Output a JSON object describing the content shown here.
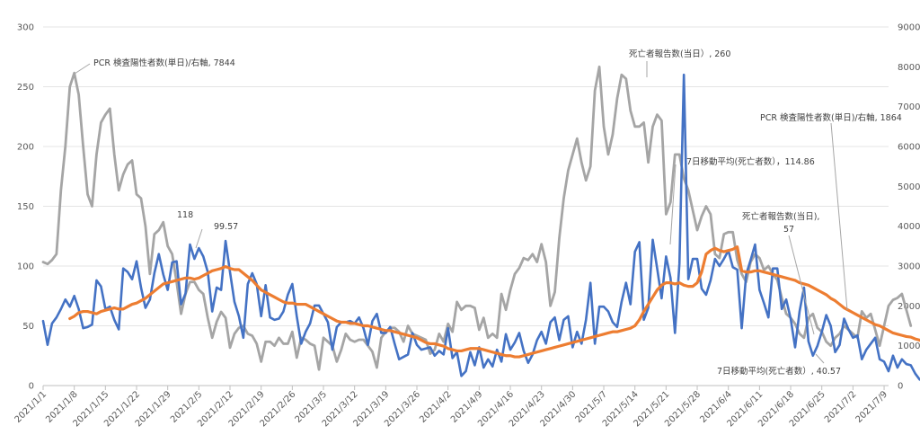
{
  "chart_data": {
    "type": "line",
    "title": "",
    "xlabel": "",
    "ylabel": "",
    "y_left_lim": [
      0,
      300
    ],
    "y_left_ticks": [
      0,
      50,
      100,
      150,
      200,
      250,
      300
    ],
    "y_right_lim": [
      0,
      9000
    ],
    "y_right_ticks": [
      0,
      1000,
      2000,
      3000,
      4000,
      5000,
      6000,
      7000,
      8000,
      9000
    ],
    "grid": "horizontal",
    "legend": "none",
    "x_tick_labels": [
      "2021/1/1",
      "2021/1/8",
      "2021/1/15",
      "2021/1/22",
      "2021/1/29",
      "2021/2/5",
      "2021/2/12",
      "2021/2/19",
      "2021/2/26",
      "2021/3/5",
      "2021/3/12",
      "2021/3/19",
      "2021/3/26",
      "2021/4/2",
      "2021/4/9",
      "2021/4/16",
      "2021/4/23",
      "2021/4/30",
      "2021/5/7",
      "2021/5/14",
      "2021/5/21",
      "2021/5/28",
      "2021/6/4",
      "2021/6/11",
      "2021/6/18",
      "2021/6/25",
      "2021/7/2",
      "2021/7/9"
    ],
    "series": [
      {
        "name": "PCR 検査陽性者数(単日)/右軸",
        "axis": "right",
        "color": "#a5a5a5",
        "values": [
          3100,
          3050,
          3150,
          3300,
          4900,
          6000,
          7500,
          7844,
          7300,
          6000,
          4800,
          4500,
          5800,
          6600,
          6800,
          6950,
          5800,
          4900,
          5300,
          5550,
          5650,
          4800,
          4700,
          4000,
          2800,
          3800,
          3900,
          4100,
          3500,
          3300,
          2600,
          1800,
          2300,
          2600,
          2600,
          2400,
          2300,
          1700,
          1200,
          1600,
          1850,
          1700,
          950,
          1300,
          1450,
          1500,
          1300,
          1250,
          1050,
          600,
          1100,
          1100,
          1000,
          1200,
          1050,
          1050,
          1350,
          700,
          1200,
          1150,
          1050,
          1000,
          400,
          1200,
          1100,
          1000,
          600,
          900,
          1300,
          1150,
          1100,
          1150,
          1150,
          1000,
          850,
          450,
          1200,
          1350,
          1450,
          1450,
          1350,
          1100,
          1500,
          1300,
          1250,
          1200,
          1150,
          800,
          900,
          1300,
          1100,
          1550,
          1350,
          2100,
          1900,
          2000,
          2000,
          1950,
          1400,
          1700,
          1200,
          1300,
          1200,
          2300,
          1900,
          2400,
          2800,
          2950,
          3200,
          3150,
          3300,
          3100,
          3550,
          3100,
          2000,
          2350,
          3700,
          4700,
          5400,
          5800,
          6200,
          5600,
          5150,
          5500,
          7400,
          8000,
          6500,
          5800,
          6300,
          7200,
          7800,
          7700,
          6900,
          6500,
          6500,
          6600,
          5600,
          6500,
          6800,
          6650,
          4300,
          4600,
          5800,
          5800,
          5200,
          4900,
          4400,
          3900,
          4250,
          4500,
          4300,
          3300,
          3200,
          3800,
          3850,
          3850,
          3150,
          2800,
          2600,
          3100,
          3300,
          3200,
          2900,
          3000,
          2800,
          2650,
          2200,
          1800,
          1700,
          1550,
          1300,
          1200,
          1700,
          1800,
          1450,
          1350,
          1100,
          1000,
          1200,
          1300,
          1500,
          1400,
          1300,
          1200,
          1864,
          1700,
          1800,
          1400,
          1000,
          1500,
          2000,
          2150,
          2200,
          2300,
          1900,
          1500
        ]
      },
      {
        "name": "死亡者報告数(当日)",
        "axis": "left",
        "color": "#4472c4",
        "values": [
          54,
          34,
          52,
          57,
          64,
          72,
          66,
          75,
          64,
          48,
          49,
          51,
          88,
          83,
          64,
          66,
          55,
          47,
          98,
          95,
          89,
          104,
          82,
          65,
          72,
          94,
          110,
          93,
          80,
          103,
          104,
          68,
          77,
          118,
          106,
          115,
          108,
          95,
          62,
          82,
          80,
          121,
          95,
          70,
          58,
          40,
          85,
          94,
          85,
          58,
          84,
          57,
          55,
          56,
          62,
          76,
          85,
          58,
          35,
          45,
          52,
          67,
          67,
          60,
          53,
          30,
          49,
          53,
          53,
          54,
          52,
          57,
          48,
          34,
          54,
          60,
          44,
          44,
          49,
          35,
          22,
          24,
          26,
          44,
          34,
          30,
          31,
          32,
          25,
          29,
          26,
          48,
          23,
          28,
          8,
          12,
          28,
          17,
          32,
          15,
          22,
          16,
          30,
          20,
          43,
          30,
          36,
          44,
          29,
          19,
          26,
          38,
          45,
          35,
          53,
          57,
          38,
          55,
          58,
          32,
          45,
          35,
          55,
          86,
          35,
          66,
          66,
          62,
          53,
          49,
          70,
          86,
          68,
          112,
          120,
          55,
          65,
          122,
          98,
          73,
          108,
          90,
          44,
          102,
          260,
          89,
          106,
          106,
          81,
          76,
          88,
          106,
          100,
          106,
          113,
          99,
          97,
          48,
          93,
          105,
          118,
          80,
          69,
          57,
          98,
          98,
          64,
          72,
          56,
          32,
          62,
          82,
          37,
          25,
          33,
          45,
          59,
          50,
          28,
          34,
          56,
          47,
          40,
          42,
          22,
          30,
          35,
          40,
          22,
          20,
          12,
          25,
          15,
          22,
          18,
          17,
          10,
          5,
          4
        ]
      },
      {
        "name": "7日移動平均(死亡者数)",
        "axis": "left",
        "color": "#ed7d31",
        "start_index": 6,
        "values": [
          56,
          58,
          61,
          62,
          62,
          61,
          60,
          62,
          63,
          64,
          65,
          64,
          64,
          66,
          68,
          69,
          71,
          73,
          76,
          79,
          82,
          85,
          86,
          87,
          88,
          89,
          90,
          90,
          89,
          90,
          92,
          94,
          96,
          97,
          98,
          99.57,
          98,
          97,
          97,
          94,
          91,
          88,
          84,
          80,
          78,
          76,
          74,
          72,
          70,
          69,
          69,
          68,
          68,
          68,
          66,
          64,
          62,
          60,
          58,
          56,
          54,
          53,
          53,
          52,
          52,
          51,
          50,
          50,
          49,
          48,
          47,
          46,
          46,
          45,
          44,
          43,
          42,
          41,
          40,
          38,
          36,
          35,
          35,
          34,
          33,
          31,
          30,
          29,
          29,
          30,
          31,
          31,
          31,
          30,
          29,
          28,
          27,
          26,
          25,
          25,
          24,
          24,
          25,
          26,
          27,
          28,
          29,
          30,
          31,
          32,
          33,
          34,
          35,
          36,
          37,
          38,
          39,
          40,
          41,
          42,
          43,
          44,
          45,
          45,
          46,
          47,
          48,
          50,
          55,
          62,
          68,
          74,
          80,
          84,
          86,
          86,
          85,
          86,
          84,
          83,
          83,
          86,
          95,
          110,
          113,
          114.86,
          113,
          112,
          113,
          114,
          116,
          96,
          95,
          95,
          96,
          96,
          95,
          94,
          93,
          92,
          91,
          90,
          89,
          88,
          86,
          85,
          84,
          82,
          80,
          78,
          76,
          73,
          71,
          68,
          65,
          63,
          61,
          59,
          57,
          55,
          53,
          51,
          50,
          48,
          46,
          44,
          43,
          42,
          41,
          40.57,
          39,
          38,
          36,
          34,
          32,
          28,
          25,
          20,
          18,
          16,
          15,
          14,
          13,
          11
        ]
      }
    ],
    "annotations": {
      "pcr_peak": "PCR 検査陽性者数(単日)/右軸, 7844",
      "pcr_end": "PCR 検査陽性者数(単日)/右軸, 1864",
      "death_peak": "死亡者報告数(当日）, 260",
      "ma_peak": "7日移動平均(死亡者数），114.86",
      "death_feb": "118",
      "ma_feb": "99.57",
      "death_end_1": "死亡者報告数(当日),",
      "death_end_2": "57",
      "ma_end": "7日移動平均(死亡者数）, 40.57"
    }
  }
}
